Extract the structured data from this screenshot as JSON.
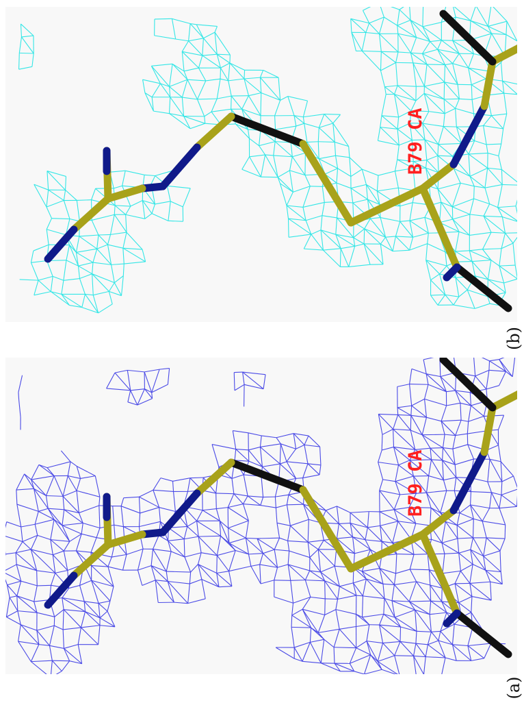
{
  "figure": {
    "panels": [
      {
        "id": "a",
        "caption": "(a)",
        "atom_label": "B79 CA",
        "mesh_color": "#4a4ae6"
      },
      {
        "id": "b",
        "caption": "(b)",
        "atom_label": "B79 CA",
        "mesh_color": "#33e6e6"
      }
    ],
    "colors": {
      "background": "#f8f8f8",
      "carbon_bond": "#a8a21a",
      "nitrogen_bond": "#101a8a",
      "neighbor_bond": "#111111",
      "label": "#ff2020"
    }
  }
}
